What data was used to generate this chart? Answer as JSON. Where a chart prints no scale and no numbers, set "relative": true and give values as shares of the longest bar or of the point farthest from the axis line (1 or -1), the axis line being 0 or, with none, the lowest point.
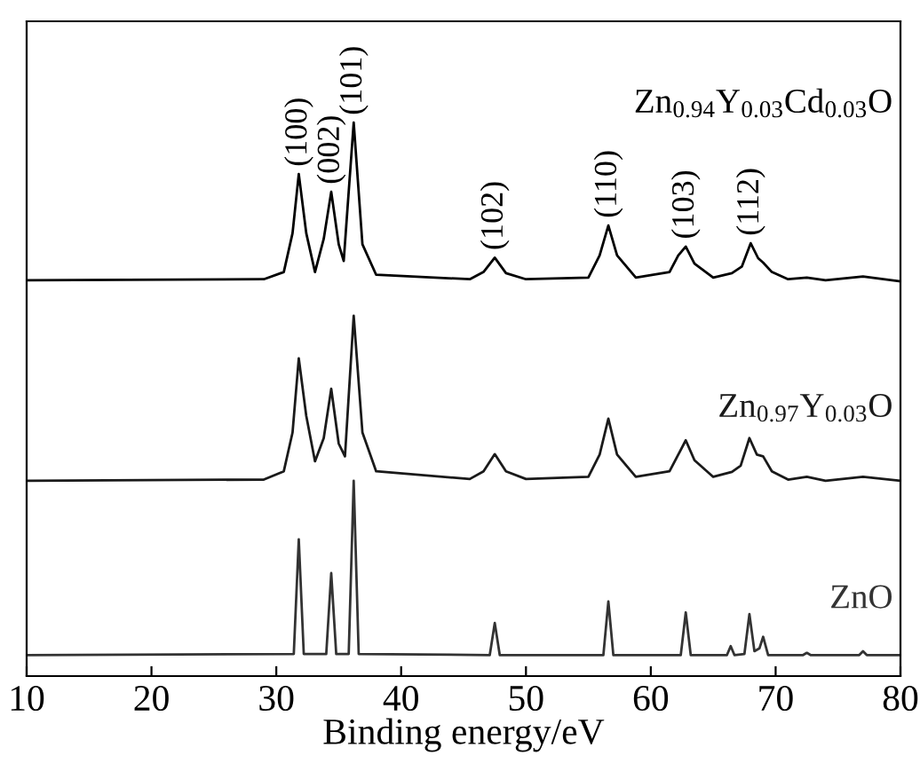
{
  "chart_data": {
    "type": "line",
    "relative": true,
    "xlabel": "Binding energy/eV",
    "xlim": [
      10,
      80
    ],
    "xticks": [
      10,
      20,
      30,
      40,
      50,
      60,
      70,
      80
    ],
    "tick_labels": "x",
    "grid": false,
    "legend": false,
    "marker": "none",
    "line_style": "solid",
    "series": [
      {
        "name": "Zn$_{0.94}$Y$_{0.03}$Cd$_{0.03}$O",
        "color": "#000000",
        "x": [
          10,
          29,
          30.6,
          31.3,
          31.8,
          32.4,
          33.1,
          33.8,
          34.4,
          35.0,
          35.4,
          36.2,
          36.9,
          38,
          45.5,
          46.6,
          47.5,
          48.4,
          50,
          55,
          55.9,
          56.6,
          57.3,
          58.8,
          61.5,
          62.2,
          62.8,
          63.5,
          65,
          66.5,
          67.3,
          68.0,
          68.6,
          69.0,
          69.7,
          71,
          72.5,
          74,
          77,
          80
        ],
        "values": [
          0.715,
          0.717,
          0.73,
          0.8,
          0.907,
          0.8,
          0.73,
          0.79,
          0.875,
          0.78,
          0.75,
          1.0,
          0.78,
          0.725,
          0.717,
          0.73,
          0.756,
          0.728,
          0.717,
          0.72,
          0.76,
          0.814,
          0.76,
          0.72,
          0.73,
          0.76,
          0.776,
          0.745,
          0.72,
          0.728,
          0.74,
          0.782,
          0.755,
          0.747,
          0.73,
          0.717,
          0.72,
          0.715,
          0.722,
          0.713
        ]
      },
      {
        "name": "Zn$_{0.97}$Y$_{0.03}$O",
        "color": "#1a1a1a",
        "x": [
          10,
          29,
          30.6,
          31.3,
          31.8,
          32.4,
          33.1,
          33.8,
          34.4,
          35.0,
          35.5,
          36.2,
          36.9,
          38,
          45.5,
          46.6,
          47.5,
          48.4,
          50,
          55,
          55.9,
          56.6,
          57.3,
          58.8,
          61.5,
          62.2,
          62.8,
          63.5,
          65,
          66.5,
          67.2,
          67.9,
          68.5,
          69.0,
          69.7,
          71,
          72.5,
          74,
          77,
          80
        ],
        "values": [
          0.353,
          0.355,
          0.37,
          0.44,
          0.574,
          0.47,
          0.388,
          0.43,
          0.519,
          0.42,
          0.397,
          0.651,
          0.44,
          0.37,
          0.356,
          0.37,
          0.401,
          0.37,
          0.356,
          0.36,
          0.4,
          0.465,
          0.4,
          0.36,
          0.37,
          0.4,
          0.426,
          0.39,
          0.36,
          0.369,
          0.38,
          0.43,
          0.4,
          0.397,
          0.37,
          0.355,
          0.36,
          0.353,
          0.36,
          0.353
        ]
      },
      {
        "name": "ZnO",
        "color": "#333333",
        "x": [
          10,
          31.4,
          31.8,
          32.2,
          34.0,
          34.4,
          34.8,
          35.8,
          36.2,
          36.6,
          47.1,
          47.5,
          47.9,
          56.2,
          56.6,
          57.0,
          62.4,
          62.8,
          63.2,
          66.1,
          66.4,
          66.7,
          67.5,
          67.9,
          68.3,
          68.7,
          69.0,
          69.4,
          72.2,
          72.5,
          72.8,
          76.7,
          77,
          77.3,
          80
        ],
        "values": [
          0.038,
          0.04,
          0.247,
          0.04,
          0.04,
          0.186,
          0.04,
          0.04,
          0.353,
          0.04,
          0.038,
          0.096,
          0.038,
          0.038,
          0.135,
          0.038,
          0.038,
          0.115,
          0.038,
          0.038,
          0.054,
          0.038,
          0.04,
          0.112,
          0.045,
          0.05,
          0.071,
          0.038,
          0.038,
          0.042,
          0.038,
          0.038,
          0.045,
          0.038,
          0.038
        ]
      }
    ],
    "annotations": [
      {
        "text": "(100)",
        "x": 31.8,
        "y": 0.907
      },
      {
        "text": "(002)",
        "x": 34.4,
        "y": 0.875
      },
      {
        "text": "(101)",
        "x": 36.2,
        "y": 1.0
      },
      {
        "text": "(102)",
        "x": 47.5,
        "y": 0.756
      },
      {
        "text": "(110)",
        "x": 56.6,
        "y": 0.814
      },
      {
        "text": "(103)",
        "x": 62.8,
        "y": 0.776
      },
      {
        "text": "(112)",
        "x": 68.0,
        "y": 0.782
      }
    ]
  }
}
